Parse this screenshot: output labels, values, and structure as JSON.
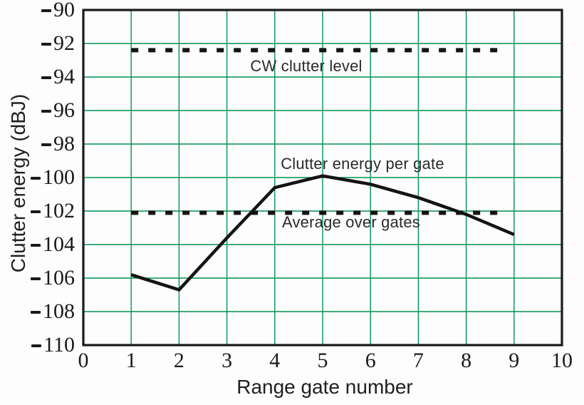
{
  "chart_data": {
    "type": "line",
    "title": "",
    "xlabel": "Range gate number",
    "ylabel": "Clutter energy (dBJ)",
    "xlim": [
      0,
      10
    ],
    "ylim": [
      -110,
      -90
    ],
    "grid": "on",
    "grid_color": "#009150",
    "line_color": "#141414",
    "xticks": [
      "0",
      "1",
      "2",
      "3",
      "4",
      "5",
      "6",
      "7",
      "8",
      "9",
      "10"
    ],
    "yticks": [
      "-90",
      "-92",
      "-94",
      "-96",
      "-98",
      "-100",
      "-102",
      "-104",
      "-106",
      "-108",
      "-110"
    ],
    "x": [
      1,
      2,
      3,
      4,
      5,
      6,
      7,
      8,
      9
    ],
    "series": [
      {
        "name": "Clutter energy per gate",
        "style": "solid",
        "values": [
          -105.8,
          -106.7,
          -103.6,
          -100.6,
          -99.9,
          -100.4,
          -101.2,
          -102.2,
          -103.4
        ]
      }
    ],
    "reference_lines": [
      {
        "label": "CW clutter level",
        "value": -92.4,
        "style": "dotted",
        "x_span": [
          1,
          8.85
        ]
      },
      {
        "label": "Average over gates",
        "value": -102.1,
        "style": "dotted",
        "x_span": [
          1,
          8.85
        ]
      }
    ],
    "annotations": [
      {
        "text": "CW clutter level"
      },
      {
        "text": "Clutter energy per gate"
      },
      {
        "text": "Average over gates"
      }
    ]
  }
}
